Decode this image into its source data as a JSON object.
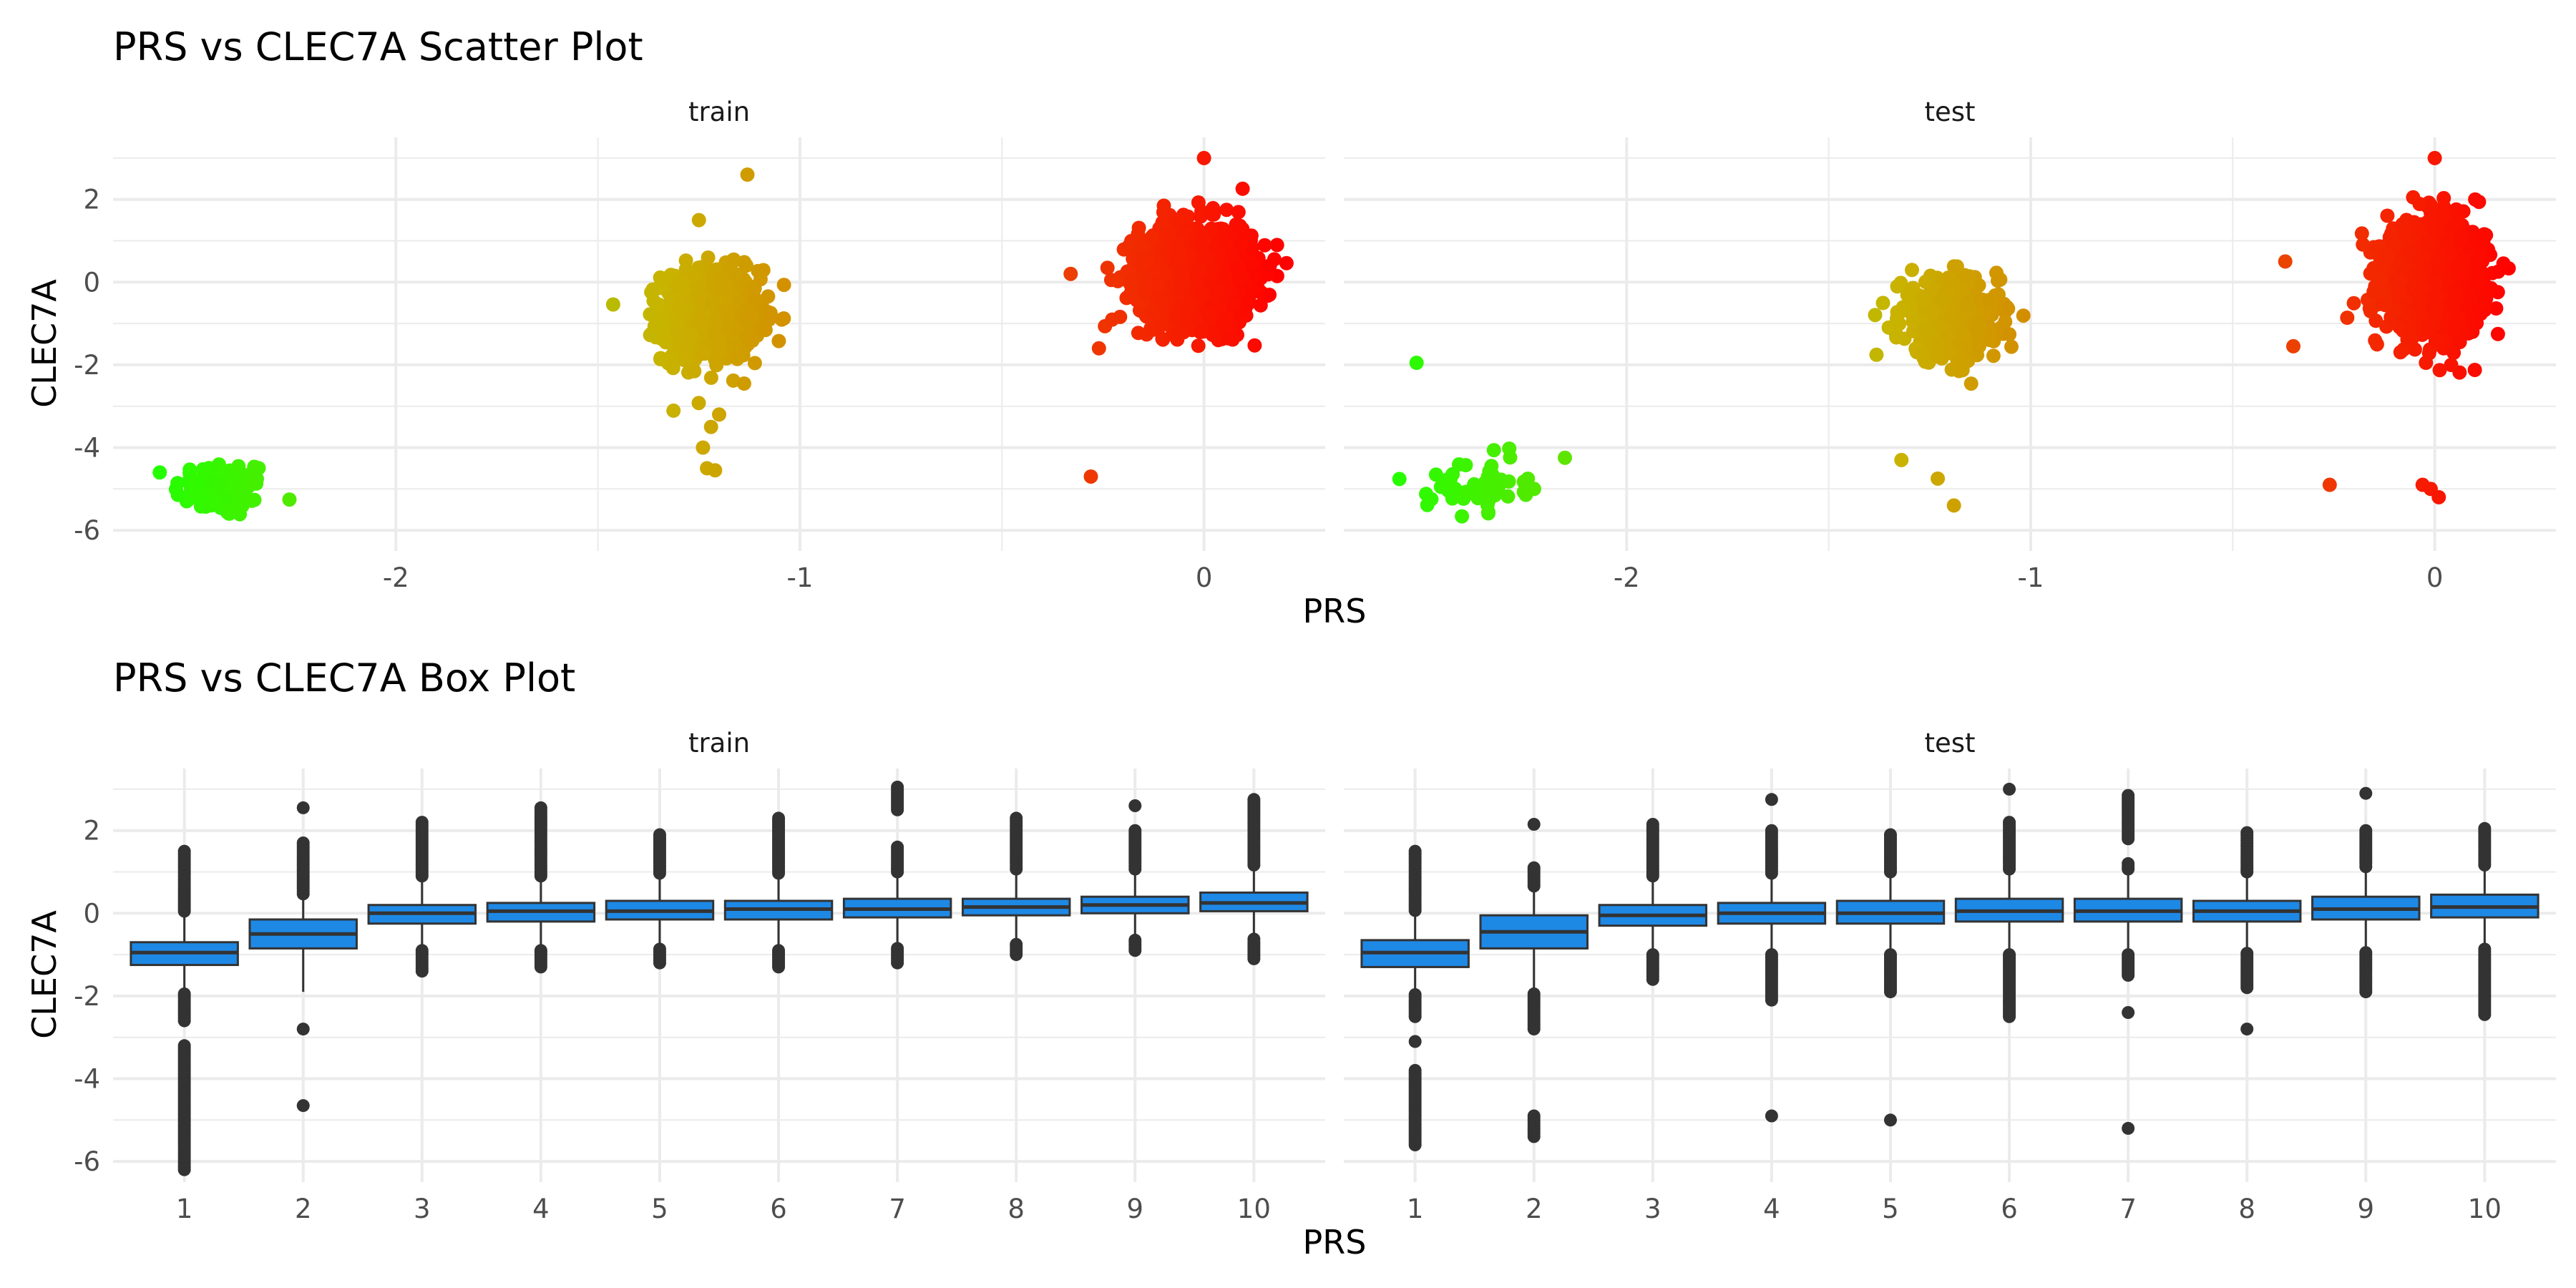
{
  "colors": {
    "grid": "#ebebeb",
    "box_fill": "#1e88e5",
    "box_line": "#333333",
    "outlier": "#333333",
    "scatter_low": "#22ff00",
    "scatter_mid": "#c8b400",
    "scatter_high": "#ff0000"
  },
  "scatter_plot": {
    "title": "PRS vs CLEC7A Scatter Plot",
    "xlabel": "PRS",
    "ylabel": "CLEC7A",
    "panels": [
      {
        "label": "train"
      },
      {
        "label": "test"
      }
    ],
    "x_ticks": [
      "-2",
      "-1",
      "0"
    ],
    "y_ticks": [
      "2",
      "0",
      "-2",
      "-4",
      "-6"
    ]
  },
  "box_plot": {
    "title": "PRS vs CLEC7A Box Plot",
    "xlabel": "PRS",
    "ylabel": "CLEC7A",
    "panels": [
      {
        "label": "train"
      },
      {
        "label": "test"
      }
    ],
    "x_ticks": [
      "1",
      "2",
      "3",
      "4",
      "5",
      "6",
      "7",
      "8",
      "9",
      "10"
    ],
    "y_ticks": [
      "2",
      "0",
      "-2",
      "-4",
      "-6"
    ]
  },
  "chart_data": [
    {
      "type": "scatter",
      "title": "PRS vs CLEC7A Scatter Plot",
      "xlabel": "PRS",
      "ylabel": "CLEC7A",
      "xlim": [
        -2.7,
        0.3
      ],
      "ylim": [
        -6.5,
        3.5
      ],
      "grid": true,
      "color_encoding": "gradient by PRS (green -> olive -> red)",
      "facets": [
        {
          "name": "train",
          "clusters": [
            {
              "x_center": -2.43,
              "x_spread": 0.06,
              "y_center": -5.0,
              "y_spread": 0.35,
              "n": 90
            },
            {
              "x_center": -1.22,
              "x_spread": 0.06,
              "y_center": -0.8,
              "y_spread": 0.55,
              "n": 700
            },
            {
              "x_center": -0.02,
              "x_spread": 0.07,
              "y_center": 0.2,
              "y_spread": 0.6,
              "n": 1500
            }
          ],
          "outliers": [
            {
              "x": -1.13,
              "y": 2.6
            },
            {
              "x": -1.25,
              "y": 1.5
            },
            {
              "x": -1.2,
              "y": -3.2
            },
            {
              "x": -1.22,
              "y": -3.5
            },
            {
              "x": -1.24,
              "y": -4.0
            },
            {
              "x": -1.23,
              "y": -4.5
            },
            {
              "x": -1.21,
              "y": -4.55
            },
            {
              "x": -0.28,
              "y": -4.7
            },
            {
              "x": -0.33,
              "y": 0.2
            },
            {
              "x": -0.26,
              "y": -1.6
            },
            {
              "x": 0.0,
              "y": 3.0
            }
          ]
        },
        {
          "name": "test",
          "clusters": [
            {
              "x_center": -2.37,
              "x_spread": 0.06,
              "y_center": -4.9,
              "y_spread": 0.3,
              "n": 55
            },
            {
              "x_center": -1.2,
              "x_spread": 0.06,
              "y_center": -0.9,
              "y_spread": 0.5,
              "n": 450
            },
            {
              "x_center": 0.0,
              "x_spread": 0.06,
              "y_center": 0.1,
              "y_spread": 0.65,
              "n": 1100
            }
          ],
          "outliers": [
            {
              "x": -2.52,
              "y": -1.95
            },
            {
              "x": -1.32,
              "y": -4.3
            },
            {
              "x": -1.23,
              "y": -4.75
            },
            {
              "x": -1.19,
              "y": -5.4
            },
            {
              "x": -0.37,
              "y": 0.5
            },
            {
              "x": -0.26,
              "y": -4.9
            },
            {
              "x": -0.03,
              "y": -4.9
            },
            {
              "x": -0.01,
              "y": -5.0
            },
            {
              "x": 0.01,
              "y": -5.2
            },
            {
              "x": 0.17,
              "y": 0.45
            },
            {
              "x": 0.1,
              "y": 2.0
            },
            {
              "x": 0.0,
              "y": 3.0
            },
            {
              "x": -0.35,
              "y": -1.55
            }
          ]
        }
      ]
    },
    {
      "type": "box",
      "title": "PRS vs CLEC7A Box Plot",
      "xlabel": "PRS",
      "ylabel": "CLEC7A",
      "categories": [
        "1",
        "2",
        "3",
        "4",
        "5",
        "6",
        "7",
        "8",
        "9",
        "10"
      ],
      "ylim": [
        -6.5,
        3.5
      ],
      "grid": true,
      "facets": [
        {
          "name": "train",
          "boxes": [
            {
              "q1": -1.25,
              "median": -0.95,
              "q3": -0.7,
              "whisker_low": -1.9,
              "whisker_high": 0.0,
              "outliers_low": [
                -2.0,
                -2.3,
                -2.6,
                -3.2,
                -3.6,
                -4.0,
                -4.4,
                -4.8,
                -5.2,
                -5.6,
                -5.9,
                -6.2
              ],
              "outliers_high": [
                0.1,
                0.4,
                0.7,
                1.0,
                1.5
              ]
            },
            {
              "q1": -0.85,
              "median": -0.5,
              "q3": -0.15,
              "whisker_low": -1.9,
              "whisker_high": 0.4,
              "outliers_low": [
                -2.8,
                -4.65
              ],
              "outliers_high": [
                0.6,
                1.0,
                1.4,
                1.7,
                2.55
              ]
            },
            {
              "q1": -0.25,
              "median": 0.0,
              "q3": 0.2,
              "whisker_low": -0.85,
              "whisker_high": 0.85,
              "outliers_low": [
                -1.0,
                -1.2,
                -1.4
              ],
              "outliers_high": [
                1.0,
                1.4,
                1.8,
                2.2
              ]
            },
            {
              "q1": -0.2,
              "median": 0.05,
              "q3": 0.25,
              "whisker_low": -0.85,
              "whisker_high": 0.85,
              "outliers_low": [
                -1.0,
                -1.3
              ],
              "outliers_high": [
                1.0,
                1.5,
                2.0,
                2.55
              ]
            },
            {
              "q1": -0.15,
              "median": 0.05,
              "q3": 0.3,
              "whisker_low": -0.8,
              "whisker_high": 0.9,
              "outliers_low": [
                -1.0,
                -1.2
              ],
              "outliers_high": [
                1.1,
                1.5,
                1.9
              ]
            },
            {
              "q1": -0.15,
              "median": 0.1,
              "q3": 0.3,
              "whisker_low": -0.85,
              "whisker_high": 0.9,
              "outliers_low": [
                -1.0,
                -1.3
              ],
              "outliers_high": [
                1.1,
                1.5,
                1.9,
                2.3
              ]
            },
            {
              "q1": -0.1,
              "median": 0.1,
              "q3": 0.35,
              "whisker_low": -0.8,
              "whisker_high": 0.95,
              "outliers_low": [
                -0.9,
                -1.2
              ],
              "outliers_high": [
                1.1,
                1.6,
                2.5,
                3.05
              ]
            },
            {
              "q1": -0.05,
              "median": 0.15,
              "q3": 0.35,
              "whisker_low": -0.7,
              "whisker_high": 1.0,
              "outliers_low": [
                -0.8,
                -1.0
              ],
              "outliers_high": [
                1.2,
                1.6,
                2.0,
                2.3
              ]
            },
            {
              "q1": 0.0,
              "median": 0.2,
              "q3": 0.4,
              "whisker_low": -0.6,
              "whisker_high": 1.0,
              "outliers_low": [
                -0.7,
                -0.9
              ],
              "outliers_high": [
                1.2,
                1.6,
                2.0,
                2.6
              ]
            },
            {
              "q1": 0.05,
              "median": 0.25,
              "q3": 0.5,
              "whisker_low": -0.55,
              "whisker_high": 1.1,
              "outliers_low": [
                -0.7,
                -1.1
              ],
              "outliers_high": [
                1.3,
                1.8,
                2.3,
                2.75
              ]
            }
          ]
        },
        {
          "name": "test",
          "boxes": [
            {
              "q1": -1.3,
              "median": -0.95,
              "q3": -0.65,
              "whisker_low": -1.9,
              "whisker_high": 0.0,
              "outliers_low": [
                -2.1,
                -2.5,
                -3.1,
                -3.8,
                -4.2,
                -4.6,
                -5.0,
                -5.3,
                -5.6
              ],
              "outliers_high": [
                0.2,
                0.5,
                0.9,
                1.2,
                1.5
              ]
            },
            {
              "q1": -0.85,
              "median": -0.45,
              "q3": -0.05,
              "whisker_low": -1.9,
              "whisker_high": 0.6,
              "outliers_low": [
                -2.0,
                -2.4,
                -2.8,
                -4.9,
                -5.4
              ],
              "outliers_high": [
                1.0,
                1.1,
                2.15
              ]
            },
            {
              "q1": -0.3,
              "median": -0.05,
              "q3": 0.2,
              "whisker_low": -0.95,
              "whisker_high": 0.85,
              "outliers_low": [
                -1.1,
                -1.4,
                -1.6
              ],
              "outliers_high": [
                1.0,
                1.4,
                1.8,
                2.15
              ]
            },
            {
              "q1": -0.25,
              "median": 0.0,
              "q3": 0.25,
              "whisker_low": -0.95,
              "whisker_high": 0.9,
              "outliers_low": [
                -1.1,
                -1.5,
                -1.8,
                -2.1,
                -4.9
              ],
              "outliers_high": [
                1.1,
                1.5,
                2.0,
                2.75
              ]
            },
            {
              "q1": -0.25,
              "median": 0.0,
              "q3": 0.3,
              "whisker_low": -0.95,
              "whisker_high": 0.95,
              "outliers_low": [
                -1.1,
                -1.5,
                -1.9,
                -5.0
              ],
              "outliers_high": [
                1.1,
                1.5,
                1.9
              ]
            },
            {
              "q1": -0.2,
              "median": 0.05,
              "q3": 0.35,
              "whisker_low": -0.95,
              "whisker_high": 1.0,
              "outliers_low": [
                -1.1,
                -1.5,
                -2.0,
                -2.5
              ],
              "outliers_high": [
                1.2,
                1.7,
                2.2,
                3.0
              ]
            },
            {
              "q1": -0.2,
              "median": 0.05,
              "q3": 0.35,
              "whisker_low": -0.95,
              "whisker_high": 1.0,
              "outliers_low": [
                -1.1,
                -1.5,
                -2.4,
                -5.2
              ],
              "outliers_high": [
                1.2,
                1.8,
                2.3,
                2.85
              ]
            },
            {
              "q1": -0.2,
              "median": 0.05,
              "q3": 0.3,
              "whisker_low": -0.9,
              "whisker_high": 0.95,
              "outliers_low": [
                -1.1,
                -1.4,
                -1.8,
                -2.8
              ],
              "outliers_high": [
                1.1,
                1.5,
                1.95
              ]
            },
            {
              "q1": -0.15,
              "median": 0.1,
              "q3": 0.4,
              "whisker_low": -0.9,
              "whisker_high": 1.05,
              "outliers_low": [
                -1.0,
                -1.4,
                -1.9
              ],
              "outliers_high": [
                1.2,
                1.6,
                2.0,
                2.9
              ]
            },
            {
              "q1": -0.1,
              "median": 0.15,
              "q3": 0.45,
              "whisker_low": -0.8,
              "whisker_high": 1.1,
              "outliers_low": [
                -1.0,
                -1.4,
                -1.9,
                -2.45
              ],
              "outliers_high": [
                1.3,
                1.7,
                2.05
              ]
            }
          ]
        }
      ]
    }
  ]
}
